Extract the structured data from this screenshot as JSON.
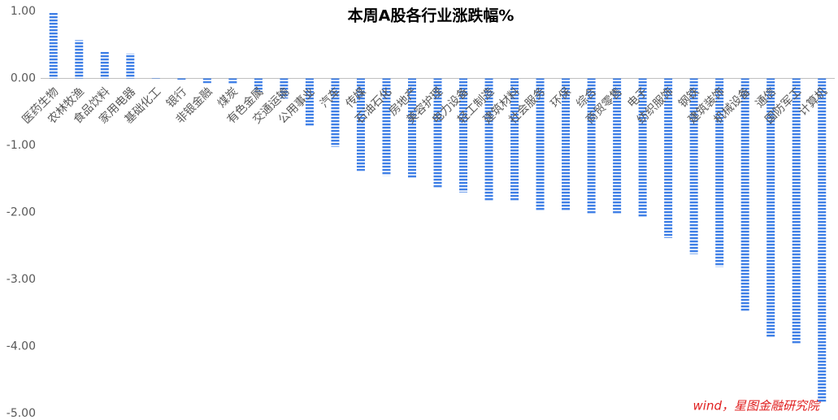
{
  "chart_data": {
    "type": "bar",
    "title": "本周A股各行业涨跌幅%",
    "categories": [
      "医药生物",
      "农林牧渔",
      "食品饮料",
      "家用电器",
      "基础化工",
      "银行",
      "非银金融",
      "煤炭",
      "有色金属",
      "交通运输",
      "公用事业",
      "汽车",
      "传媒",
      "石油石化",
      "房地产",
      "美容护理",
      "电力设备",
      "轻工制造",
      "建筑材料",
      "社会服务",
      "环保",
      "综合",
      "商贸零售",
      "电子",
      "纺织服饰",
      "钢铁",
      "建筑装饰",
      "机械设备",
      "通信",
      "国防军工",
      "计算机"
    ],
    "values": [
      0.99,
      0.57,
      0.41,
      0.37,
      0.01,
      -0.02,
      -0.07,
      -0.08,
      -0.2,
      -0.3,
      -0.72,
      -1.02,
      -1.38,
      -1.45,
      -1.49,
      -1.64,
      -1.7,
      -1.82,
      -1.82,
      -1.97,
      -1.98,
      -2.03,
      -2.03,
      -2.07,
      -2.38,
      -2.62,
      -2.81,
      -3.48,
      -3.87,
      -3.97,
      -4.83
    ],
    "color": "#3f7fe6",
    "ylim": [
      -5,
      1
    ],
    "yticks": [
      {
        "value": -5,
        "label": "-5.00"
      },
      {
        "value": -4,
        "label": "-4.00"
      },
      {
        "value": -3,
        "label": "-3.00"
      },
      {
        "value": -2,
        "label": "-2.00"
      },
      {
        "value": -1,
        "label": "-1.00"
      },
      {
        "value": 0,
        "label": "0.00"
      },
      {
        "value": 1,
        "label": "1.00"
      }
    ],
    "source": "wind，星图金融研究院"
  }
}
